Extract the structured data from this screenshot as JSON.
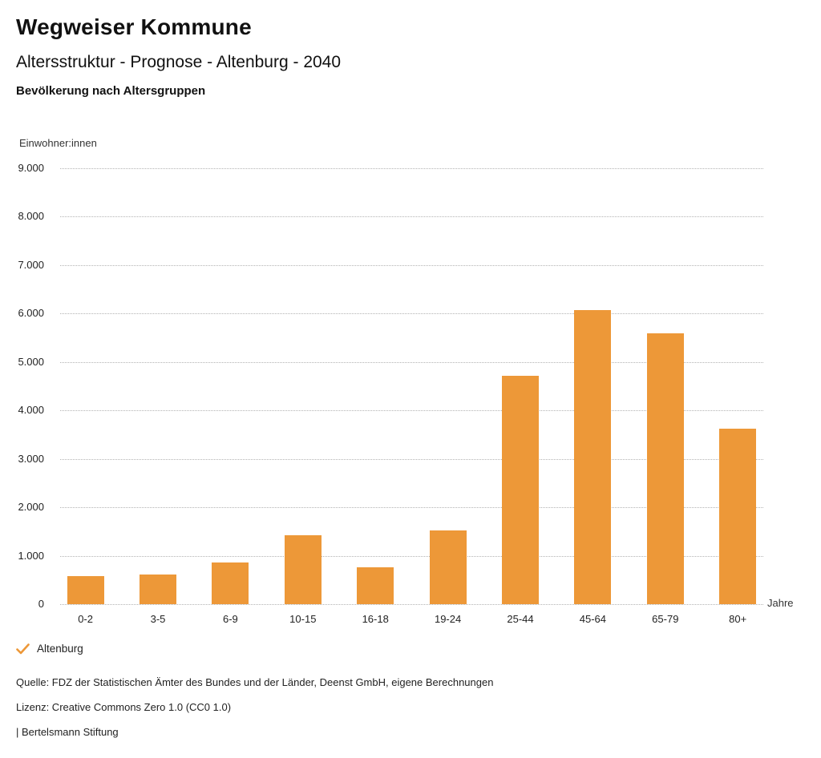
{
  "header": {
    "brand": "Wegweiser Kommune",
    "title": "Altersstruktur - Prognose - Altenburg - 2040",
    "subtitle": "Bevölkerung nach Altersgruppen"
  },
  "chart_data": {
    "type": "bar",
    "title": "Bevölkerung nach Altersgruppen",
    "series_name": "Altenburg",
    "categories": [
      "0-2",
      "3-5",
      "6-9",
      "10-15",
      "16-18",
      "19-24",
      "25-44",
      "45-64",
      "65-79",
      "80+"
    ],
    "values": [
      580,
      615,
      860,
      1430,
      755,
      1525,
      4720,
      6070,
      5600,
      3630
    ],
    "xlabel": "Jahre",
    "ylabel": "Einwohner:innen",
    "ylim": [
      0,
      9000
    ],
    "y_ticks": [
      0,
      1000,
      2000,
      3000,
      4000,
      5000,
      6000,
      7000,
      8000,
      9000
    ],
    "y_tick_labels": [
      "0",
      "1.000",
      "2.000",
      "3.000",
      "4.000",
      "5.000",
      "6.000",
      "7.000",
      "8.000",
      "9.000"
    ],
    "grid": "horizontal-dotted",
    "legend_position": "bottom-left",
    "bar_color": "#ED9838"
  },
  "legend": {
    "items": [
      {
        "label": "Altenburg",
        "checked": true,
        "color": "#ED9838"
      }
    ]
  },
  "footer": {
    "source": "Quelle: FDZ der Statistischen Ämter des Bundes und der Länder, Deenst GmbH, eigene Berechnungen",
    "license": "Lizenz: Creative Commons Zero 1.0 (CC0 1.0)",
    "attribution": "| Bertelsmann Stiftung"
  }
}
